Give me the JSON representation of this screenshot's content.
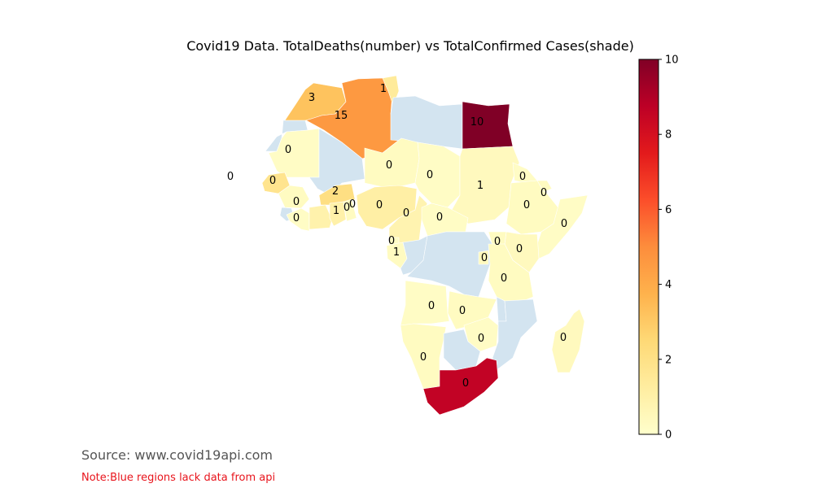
{
  "title": "Covid19 Data. TotalDeaths(number) vs TotalConfirmed Cases(shade)",
  "source": "Source: www.covid19api.com",
  "note": "Note:Blue regions lack data from api",
  "colors": {
    "no_data": "#d3e4f0",
    "scale": [
      "#ffffcc",
      "#ffeda0",
      "#fed976",
      "#feb24c",
      "#fd8d3c",
      "#fc4e2a",
      "#e31a1c",
      "#bd0026",
      "#800026"
    ]
  },
  "colorbar": {
    "min": 0,
    "max": 10,
    "ticks": [
      "0",
      "2",
      "4",
      "6",
      "8",
      "10"
    ]
  },
  "regions": [
    {
      "name": "Morocco",
      "shade": 3.2,
      "deaths": "3"
    },
    {
      "name": "Algeria",
      "shade": 4.6,
      "deaths": "15"
    },
    {
      "name": "Tunisia",
      "shade": 1.4,
      "deaths": "1"
    },
    {
      "name": "Libya",
      "shade": null,
      "deaths": ""
    },
    {
      "name": "Egypt",
      "shade": 10,
      "deaths": "10"
    },
    {
      "name": "Western Sahara",
      "shade": null,
      "deaths": ""
    },
    {
      "name": "Mauritania",
      "shade": 0.2,
      "deaths": "0"
    },
    {
      "name": "Mali",
      "shade": null,
      "deaths": ""
    },
    {
      "name": "Niger",
      "shade": 0.3,
      "deaths": "0"
    },
    {
      "name": "Chad",
      "shade": 0.2,
      "deaths": "0"
    },
    {
      "name": "Sudan",
      "shade": 0.4,
      "deaths": "1"
    },
    {
      "name": "Eritrea",
      "shade": 0.2,
      "deaths": "0"
    },
    {
      "name": "Cabo Verde",
      "shade": 0.2,
      "deaths": "0"
    },
    {
      "name": "Senegal",
      "shade": 1.8,
      "deaths": "0"
    },
    {
      "name": "Guinea",
      "shade": 0.3,
      "deaths": "0"
    },
    {
      "name": "Sierra Leone",
      "shade": null,
      "deaths": ""
    },
    {
      "name": "Liberia",
      "shade": 0.2,
      "deaths": "0"
    },
    {
      "name": "Burkina Faso",
      "shade": 2.1,
      "deaths": "2"
    },
    {
      "name": "Cote d'Ivoire",
      "shade": 0.9,
      "deaths": "1"
    },
    {
      "name": "Ghana",
      "shade": 1.0,
      "deaths": "0"
    },
    {
      "name": "Togo",
      "shade": 0.3,
      "deaths": "0"
    },
    {
      "name": "Nigeria",
      "shade": 1.1,
      "deaths": "0"
    },
    {
      "name": "Cameroon",
      "shade": 0.8,
      "deaths": "0"
    },
    {
      "name": "Central African Republic",
      "shade": 0.2,
      "deaths": "0"
    },
    {
      "name": "Ethiopia",
      "shade": 0.3,
      "deaths": "0"
    },
    {
      "name": "Djibouti",
      "shade": 0.3,
      "deaths": "0"
    },
    {
      "name": "Somalia",
      "shade": 0.2,
      "deaths": "0"
    },
    {
      "name": "Kenya",
      "shade": 0.4,
      "deaths": "0"
    },
    {
      "name": "Equatorial Guinea",
      "shade": 0.2,
      "deaths": "0"
    },
    {
      "name": "Gabon",
      "shade": 0.3,
      "deaths": "1"
    },
    {
      "name": "Congo",
      "shade": null,
      "deaths": ""
    },
    {
      "name": "DR Congo",
      "shade": null,
      "deaths": ""
    },
    {
      "name": "Uganda",
      "shade": 0.3,
      "deaths": "0"
    },
    {
      "name": "Rwanda",
      "shade": 0.4,
      "deaths": "0"
    },
    {
      "name": "Tanzania",
      "shade": 0.3,
      "deaths": "0"
    },
    {
      "name": "Angola",
      "shade": 0.2,
      "deaths": "0"
    },
    {
      "name": "Zambia",
      "shade": 0.3,
      "deaths": "0"
    },
    {
      "name": "Malawi",
      "shade": null,
      "deaths": ""
    },
    {
      "name": "Mozambique",
      "shade": null,
      "deaths": ""
    },
    {
      "name": "Zimbabwe",
      "shade": 0.2,
      "deaths": "0"
    },
    {
      "name": "Namibia",
      "shade": 0.3,
      "deaths": "0"
    },
    {
      "name": "Botswana",
      "shade": null,
      "deaths": ""
    },
    {
      "name": "Madagascar",
      "shade": 0.4,
      "deaths": "0"
    },
    {
      "name": "South Africa",
      "shade": 8.6,
      "deaths": "0"
    }
  ]
}
